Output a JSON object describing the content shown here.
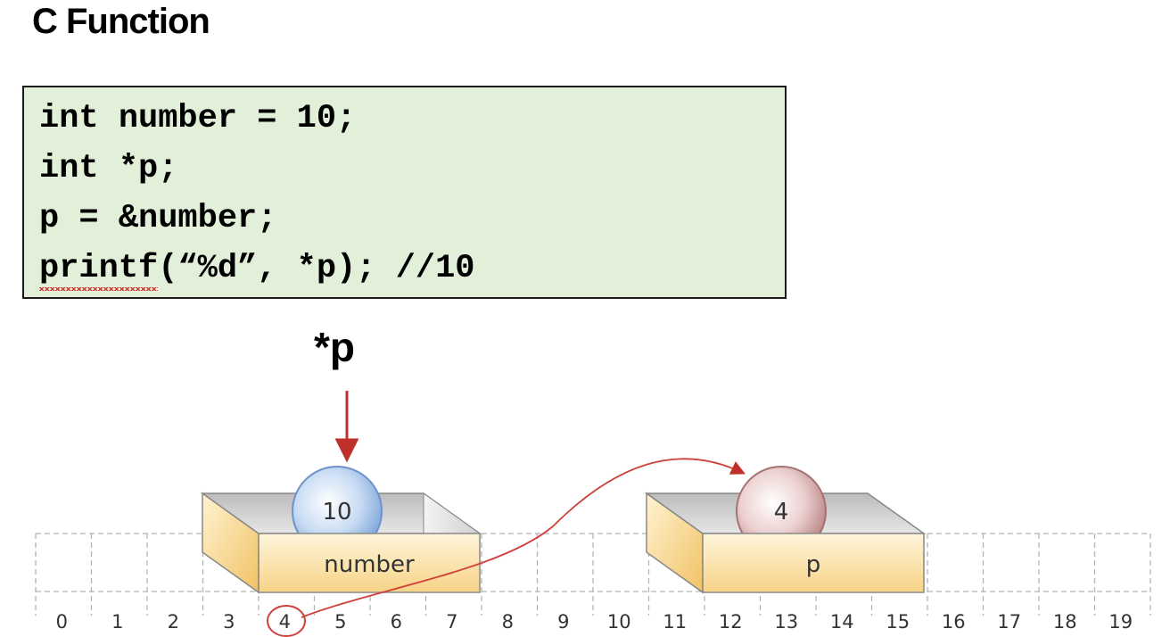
{
  "title": "C Function",
  "code": {
    "lines": [
      "int number = 10;",
      "int *p;",
      "p = &number;",
      "//10"
    ],
    "printf_fn": "printf",
    "printf_args": "(“%d”, *p); "
  },
  "pointer_label": "*p",
  "memory": {
    "indices": [
      "0",
      "1",
      "2",
      "3",
      "4",
      "5",
      "6",
      "7",
      "8",
      "9",
      "10",
      "11",
      "12",
      "13",
      "14",
      "15",
      "16",
      "17",
      "18",
      "19"
    ],
    "highlighted_index": "4"
  },
  "boxes": {
    "number": {
      "label": "number",
      "value": "10",
      "ball_color": "#a9c6ec"
    },
    "p": {
      "label": "p",
      "value": "4",
      "ball_color": "#e1b8b8"
    }
  },
  "colors": {
    "code_bg": "#e2f0d9",
    "arrow": "#c0302a"
  }
}
